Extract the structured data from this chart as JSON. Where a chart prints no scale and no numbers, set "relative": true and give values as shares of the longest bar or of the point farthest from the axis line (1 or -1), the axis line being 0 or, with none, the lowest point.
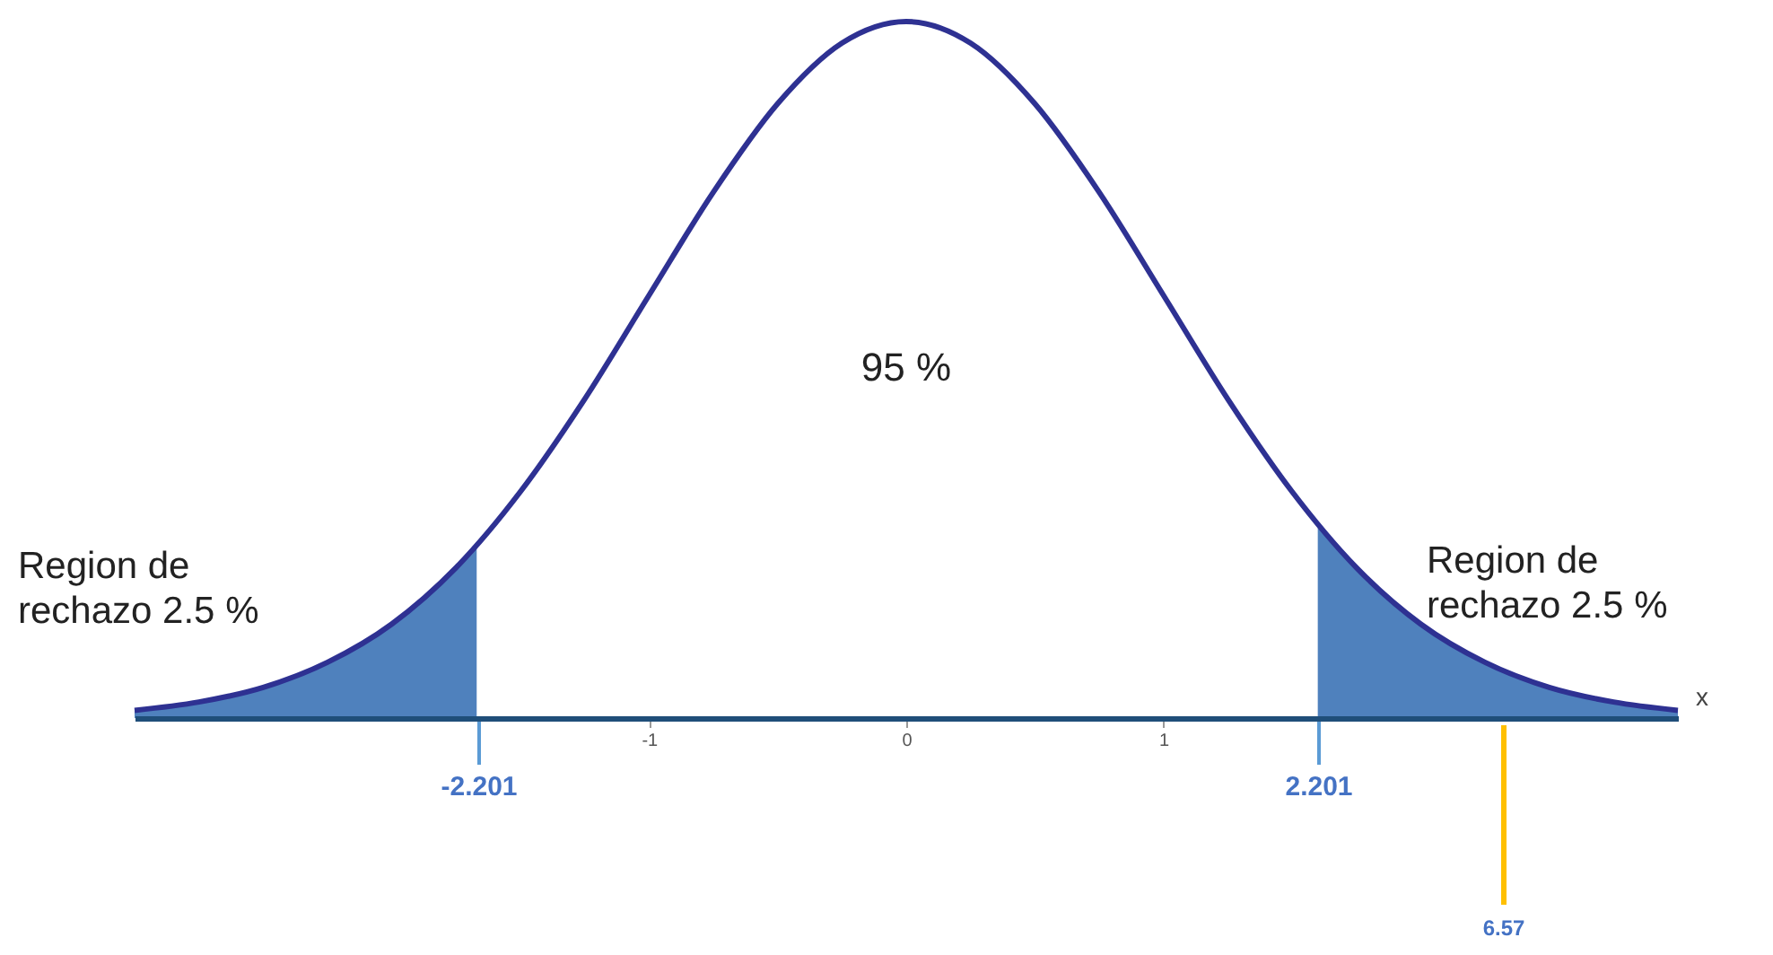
{
  "chart_data": {
    "type": "line",
    "relative": true,
    "xlabel": "x",
    "xlim": [
      -3,
      3
    ],
    "xticks": [
      -1,
      0,
      1
    ],
    "series": [
      {
        "type": "area",
        "color": "#4f81bd",
        "x": [
          -3,
          -2.75,
          -2.5,
          -2.25,
          -2,
          -1.67
        ],
        "values": [
          0.011,
          0.023,
          0.044,
          0.08,
          0.135,
          0.248
        ]
      },
      {
        "type": "area",
        "color": "#4f81bd",
        "x": [
          1.6,
          1.75,
          2,
          2.25,
          2.5,
          2.75,
          3
        ],
        "values": [
          0.278,
          0.216,
          0.135,
          0.08,
          0.044,
          0.023,
          0.011
        ]
      },
      {
        "color": "#2e3192",
        "x": [
          -3,
          -2.75,
          -2.5,
          -2.25,
          -2,
          -1.75,
          -1.5,
          -1.25,
          -1,
          -0.75,
          -0.5,
          -0.25,
          0,
          0.25,
          0.5,
          0.75,
          1,
          1.25,
          1.5,
          1.75,
          2,
          2.25,
          2.5,
          2.75,
          3
        ],
        "values": [
          0.011,
          0.023,
          0.044,
          0.08,
          0.135,
          0.216,
          0.325,
          0.458,
          0.607,
          0.755,
          0.882,
          0.969,
          1,
          0.969,
          0.882,
          0.755,
          0.607,
          0.458,
          0.325,
          0.216,
          0.135,
          0.08,
          0.044,
          0.023,
          0.011
        ]
      }
    ],
    "annotations": [
      "95 %",
      "Region de\nrechazo  2.5 %",
      "Region de\nrechazo    2.5 %",
      "-2.201",
      "2.201",
      "6.57"
    ]
  }
}
